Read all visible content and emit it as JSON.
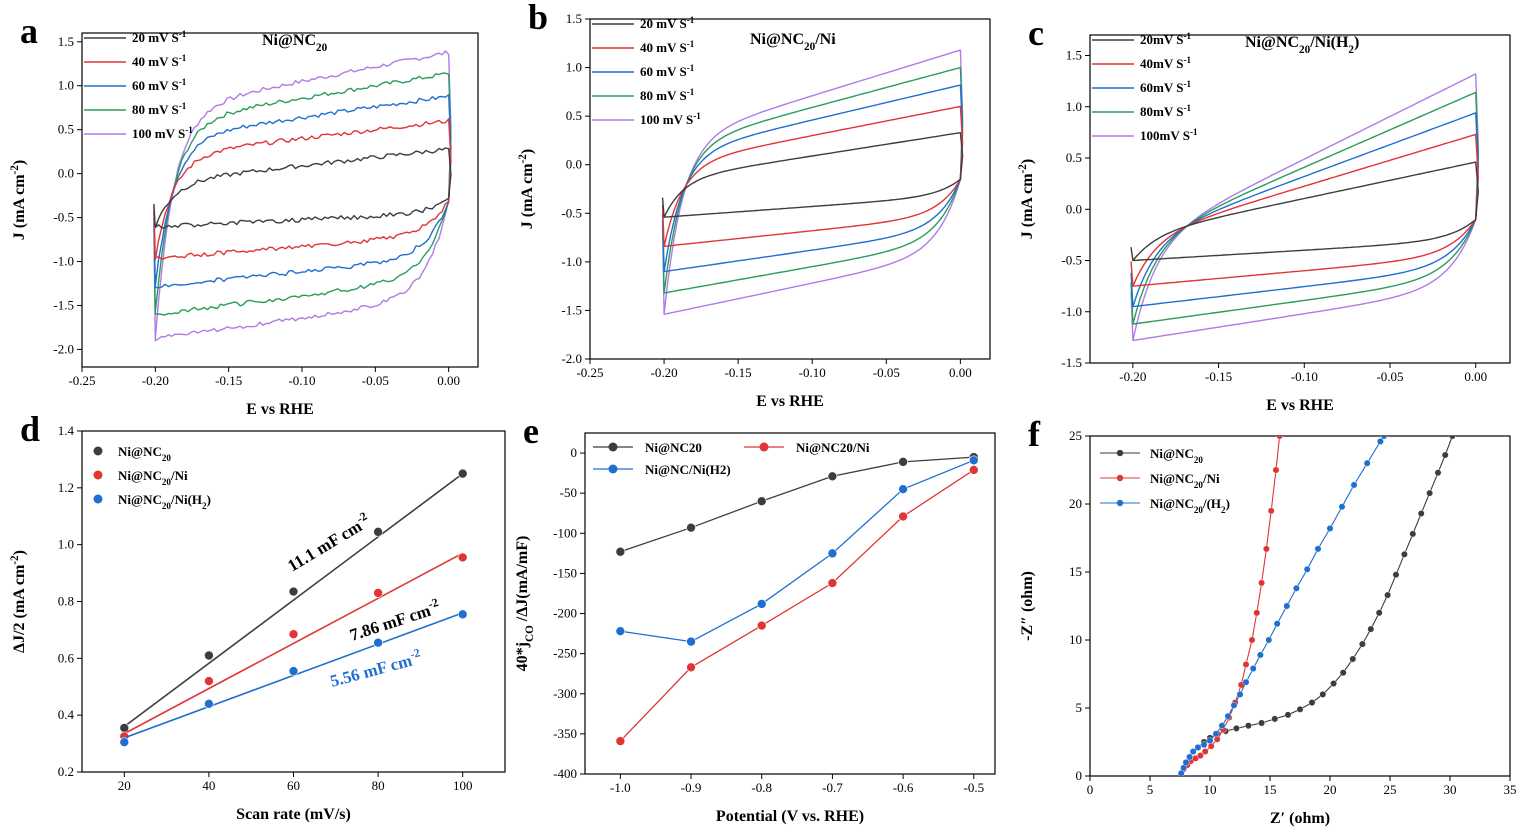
{
  "colors": {
    "black": "#3d3d3d",
    "red": "#e03535",
    "blue": "#1f6fd0",
    "green": "#2a9d5c",
    "purple": "#b07be8"
  },
  "chart_data": [
    {
      "id": "a",
      "type": "line",
      "panel_label": "a",
      "title": "Ni@NC20",
      "title_main": "Ni@NC",
      "title_sub": "20",
      "title_tail": "",
      "xlabel": "E vs RHE",
      "ylabel": "J (mA cm-2)",
      "ylabel_main": "J (mA cm",
      "ylabel_sup": "-2",
      "ylabel_tail": ")",
      "xlim": [
        -0.25,
        0.02
      ],
      "ylim": [
        -2.2,
        1.6
      ],
      "xticks": [
        -0.25,
        -0.2,
        -0.15,
        -0.1,
        -0.05,
        0.0
      ],
      "xtick_labels": [
        "-0.25",
        "-0.20",
        "-0.15",
        "-0.10",
        "-0.05",
        "0.00"
      ],
      "yticks": [
        -2.0,
        -1.5,
        -1.0,
        -0.5,
        0.0,
        0.5,
        1.0,
        1.5
      ],
      "ytick_labels": [
        "-2.0",
        "-1.5",
        "-1.0",
        "-0.5",
        "0.0",
        "0.5",
        "1.0",
        "1.5"
      ],
      "cv": {
        "x_min": -0.2,
        "x_max": 0.0,
        "cross_x": -0.018,
        "cross_y": -0.3,
        "noise": 0.025
      },
      "series": [
        {
          "name": "20 mV S-1",
          "label_main": "20 mV S",
          "label_sup": "-1",
          "color": "#3d3d3d",
          "upper_start": -0.1,
          "upper_end": 0.28,
          "lower_start": -0.6,
          "lower_end": -0.45
        },
        {
          "name": "40 mV S-1",
          "label_main": "40 mV S",
          "label_sup": "-1",
          "color": "#e03535",
          "upper_start": 0.2,
          "upper_end": 0.6,
          "lower_start": -0.96,
          "lower_end": -0.7
        },
        {
          "name": "60 mV S-1",
          "label_main": "60 mV S",
          "label_sup": "-1",
          "color": "#1f6fd0",
          "upper_start": 0.4,
          "upper_end": 0.88,
          "lower_start": -1.28,
          "lower_end": -0.95
        },
        {
          "name": "80 mV S-1",
          "label_main": "80 mV S",
          "label_sup": "-1",
          "color": "#2a9d5c",
          "upper_start": 0.58,
          "upper_end": 1.14,
          "lower_start": -1.6,
          "lower_end": -1.18
        },
        {
          "name": "100 mV S-1",
          "label_main": "100 mV S",
          "label_sup": "-1",
          "color": "#b07be8",
          "upper_start": 0.72,
          "upper_end": 1.38,
          "lower_start": -1.88,
          "lower_end": -1.4
        }
      ]
    },
    {
      "id": "b",
      "type": "line",
      "panel_label": "b",
      "title": "Ni@NC20/Ni",
      "title_main": "Ni@NC",
      "title_sub": "20",
      "title_tail": "/Ni",
      "xlabel": "E vs RHE",
      "ylabel": "J (mA cm-2)",
      "ylabel_main": "J (mA cm",
      "ylabel_sup": "-2",
      "ylabel_tail": ")",
      "xlim": [
        -0.25,
        0.02
      ],
      "ylim": [
        -2.0,
        1.5
      ],
      "xticks": [
        -0.25,
        -0.2,
        -0.15,
        -0.1,
        -0.05,
        0.0
      ],
      "xtick_labels": [
        "-0.25",
        "-0.20",
        "-0.15",
        "-0.10",
        "-0.05",
        "0.00"
      ],
      "yticks": [
        -2.0,
        -1.5,
        -1.0,
        -0.5,
        0.0,
        0.5,
        1.0,
        1.5
      ],
      "ytick_labels": [
        "-2.0",
        "-1.5",
        "-1.0",
        "-0.5",
        "0.0",
        "0.5",
        "1.0",
        "1.5"
      ],
      "cv": {
        "x_min": -0.2,
        "x_max": 0.0,
        "cross_x": -0.025,
        "cross_y": -0.15,
        "noise": 0.0
      },
      "series": [
        {
          "name": "20 mV S-1",
          "label_main": "20 mV S",
          "label_sup": "-1",
          "color": "#3d3d3d",
          "upper_start": -0.15,
          "upper_end": 0.33,
          "lower_start": -0.54,
          "lower_end": -0.32
        },
        {
          "name": "40 mV S-1",
          "label_main": "40 mV S",
          "label_sup": "-1",
          "color": "#e03535",
          "upper_start": 0.0,
          "upper_end": 0.6,
          "lower_start": -0.84,
          "lower_end": -0.52
        },
        {
          "name": "60 mV S-1",
          "label_main": "60 mV S",
          "label_sup": "-1",
          "color": "#1f6fd0",
          "upper_start": 0.1,
          "upper_end": 0.82,
          "lower_start": -1.1,
          "lower_end": -0.66
        },
        {
          "name": "80 mV S-1",
          "label_main": "80 mV S",
          "label_sup": "-1",
          "color": "#2a9d5c",
          "upper_start": 0.18,
          "upper_end": 1.0,
          "lower_start": -1.32,
          "lower_end": -0.78
        },
        {
          "name": "100 mV S-1",
          "label_main": "100 mV S",
          "label_sup": "-1",
          "color": "#b07be8",
          "upper_start": 0.24,
          "upper_end": 1.18,
          "lower_start": -1.54,
          "lower_end": -0.9
        }
      ]
    },
    {
      "id": "c",
      "type": "line",
      "panel_label": "c",
      "title": "Ni@NC20/Ni(H2)",
      "title_main": "Ni@NC",
      "title_sub": "20",
      "title_tail": "/Ni(H",
      "title_sub2": "2",
      "title_tail2": ")",
      "xlabel": "E vs RHE",
      "ylabel": "J (mA cm-2)",
      "ylabel_main": "J (mA cm",
      "ylabel_sup": "-2",
      "ylabel_tail": ")",
      "xlim": [
        -0.225,
        0.02
      ],
      "ylim": [
        -1.5,
        1.7
      ],
      "xticks": [
        -0.2,
        -0.15,
        -0.1,
        -0.05,
        0.0
      ],
      "xtick_labels": [
        "-0.20",
        "-0.15",
        "-0.10",
        "-0.05",
        "0.00"
      ],
      "yticks": [
        -1.5,
        -1.0,
        -0.5,
        0.0,
        0.5,
        1.0,
        1.5
      ],
      "ytick_labels": [
        "-1.5",
        "-1.0",
        "-0.5",
        "0.0",
        "0.5",
        "1.0",
        "1.5"
      ],
      "cv": {
        "x_min": -0.2,
        "x_max": 0.0,
        "cross_x": -0.03,
        "cross_y": -0.1,
        "noise": 0.0
      },
      "series": [
        {
          "name": "20mV S-1",
          "label_main": "20mV S",
          "label_sup": "-1",
          "color": "#3d3d3d",
          "upper_start": -0.25,
          "upper_end": 0.46,
          "lower_start": -0.5,
          "lower_end": -0.3
        },
        {
          "name": "40mV S-1",
          "label_main": "40mV S",
          "label_sup": "-1",
          "color": "#e03535",
          "upper_start": -0.28,
          "upper_end": 0.73,
          "lower_start": -0.75,
          "lower_end": -0.45
        },
        {
          "name": "60mV S-1",
          "label_main": "60mV S",
          "label_sup": "-1",
          "color": "#1f6fd0",
          "upper_start": -0.3,
          "upper_end": 0.94,
          "lower_start": -0.95,
          "lower_end": -0.56
        },
        {
          "name": "80mV S-1",
          "label_main": "80mV S",
          "label_sup": "-1",
          "color": "#2a9d5c",
          "upper_start": -0.32,
          "upper_end": 1.14,
          "lower_start": -1.12,
          "lower_end": -0.66
        },
        {
          "name": "100mV S-1",
          "label_main": "100mV S",
          "label_sup": "-1",
          "color": "#b07be8",
          "upper_start": -0.34,
          "upper_end": 1.32,
          "lower_start": -1.28,
          "lower_end": -0.76
        }
      ]
    },
    {
      "id": "d",
      "type": "scatter",
      "panel_label": "d",
      "xlabel": "Scan rate (mV/s)",
      "ylabel": "ΔJ/2 (mA cm-2)",
      "ylabel_main": "ΔJ/2 (mA cm",
      "ylabel_sup": "-2",
      "ylabel_tail": ")",
      "xlim": [
        10,
        110
      ],
      "ylim": [
        0.2,
        1.4
      ],
      "xticks": [
        20,
        40,
        60,
        80,
        100
      ],
      "xtick_labels": [
        "20",
        "40",
        "60",
        "80",
        "100"
      ],
      "yticks": [
        0.2,
        0.4,
        0.6,
        0.8,
        1.0,
        1.2,
        1.4
      ],
      "ytick_labels": [
        "0.2",
        "0.4",
        "0.6",
        "0.8",
        "1.0",
        "1.2",
        "1.4"
      ],
      "x": [
        20,
        40,
        60,
        80,
        100
      ],
      "series": [
        {
          "name": "Ni@NC20",
          "label_main": "Ni@NC",
          "label_sub": "20",
          "label_tail": "",
          "color": "#3d3d3d",
          "values": [
            0.355,
            0.61,
            0.835,
            1.045,
            1.25
          ],
          "fit": [
            0.36,
            1.25
          ],
          "annotation": "11.1 mF cm-2",
          "ann_main": "11.1 mF cm",
          "ann_sup": "-2",
          "ann_color": "#000000"
        },
        {
          "name": "Ni@NC20/Ni",
          "label_main": "Ni@NC",
          "label_sub": "20",
          "label_tail": "/Ni",
          "color": "#e03535",
          "values": [
            0.325,
            0.52,
            0.685,
            0.83,
            0.955
          ],
          "fit": [
            0.335,
            0.97
          ],
          "annotation": "7.86 mF cm-2",
          "ann_main": "7.86 mF cm",
          "ann_sup": "-2",
          "ann_color": "#000000"
        },
        {
          "name": "Ni@NC20/Ni(H2)",
          "label_main": "Ni@NC",
          "label_sub": "20",
          "label_tail": "/Ni(H",
          "label_sub2": "2",
          "label_tail2": ")",
          "color": "#1f6fd0",
          "values": [
            0.305,
            0.44,
            0.555,
            0.655,
            0.755
          ],
          "fit": [
            0.32,
            0.76
          ],
          "annotation": "5.56 mF cm-2",
          "ann_main": "5.56 mF cm",
          "ann_sup": "-2",
          "ann_color": "#1f6fd0"
        }
      ]
    },
    {
      "id": "e",
      "type": "line",
      "panel_label": "e",
      "xlabel": "Potential (V vs. RHE)",
      "ylabel": "40*jCO /ΔJ(mA/mF)",
      "ylabel_main": "40*j",
      "ylabel_sub": "CO",
      "ylabel_tail": " /ΔJ(mA/mF)",
      "xlim": [
        -1.05,
        -0.47
      ],
      "ylim": [
        -400,
        25
      ],
      "xticks": [
        -1.0,
        -0.9,
        -0.8,
        -0.7,
        -0.6,
        -0.5
      ],
      "xtick_labels": [
        "-1.0",
        "-0.9",
        "-0.8",
        "-0.7",
        "-0.6",
        "-0.5"
      ],
      "yticks": [
        -400,
        -350,
        -300,
        -250,
        -200,
        -150,
        -100,
        -50,
        0
      ],
      "ytick_labels": [
        "-400",
        "-350",
        "-300",
        "-250",
        "-200",
        "-150",
        "-100",
        "-50",
        "0"
      ],
      "x": [
        -1.0,
        -0.9,
        -0.8,
        -0.7,
        -0.6,
        -0.5
      ],
      "series": [
        {
          "name": "Ni@NC20",
          "label_main": "Ni@NC20",
          "color": "#3d3d3d",
          "values": [
            -123,
            -93,
            -60,
            -29,
            -11,
            -5
          ]
        },
        {
          "name": "Ni@NC20/Ni",
          "label_main": "Ni@NC20/Ni",
          "color": "#e03535",
          "values": [
            -359,
            -267,
            -215,
            -162,
            -79,
            -21
          ]
        },
        {
          "name": "Ni@NC/Ni(H2)",
          "label_main": "Ni@NC/Ni(H2)",
          "color": "#1f6fd0",
          "values": [
            -222,
            -235,
            -188,
            -125,
            -45,
            -9
          ]
        }
      ]
    },
    {
      "id": "f",
      "type": "scatter",
      "panel_label": "f",
      "xlabel": "Z′ (ohm)",
      "ylabel": "-Z″ (ohm)",
      "xlim": [
        0,
        35
      ],
      "ylim": [
        0,
        25
      ],
      "xticks": [
        0,
        5,
        10,
        15,
        20,
        25,
        30,
        35
      ],
      "xtick_labels": [
        "0",
        "5",
        "10",
        "15",
        "20",
        "25",
        "30",
        "35"
      ],
      "yticks": [
        0,
        5,
        10,
        15,
        20,
        25
      ],
      "ytick_labels": [
        "0",
        "5",
        "10",
        "15",
        "20",
        "25"
      ],
      "series": [
        {
          "name": "Ni@NC20",
          "label_main": "Ni@NC",
          "label_sub": "20",
          "label_tail": "",
          "color": "#3d3d3d",
          "points": [
            [
              7.6,
              0.2
            ],
            [
              7.8,
              0.6
            ],
            [
              8.0,
              1.0
            ],
            [
              8.3,
              1.4
            ],
            [
              8.6,
              1.8
            ],
            [
              9.0,
              2.1
            ],
            [
              9.5,
              2.5
            ],
            [
              10.0,
              2.8
            ],
            [
              10.6,
              3.1
            ],
            [
              11.3,
              3.3
            ],
            [
              12.2,
              3.5
            ],
            [
              13.2,
              3.7
            ],
            [
              14.3,
              3.9
            ],
            [
              15.4,
              4.2
            ],
            [
              16.5,
              4.5
            ],
            [
              17.5,
              4.9
            ],
            [
              18.5,
              5.4
            ],
            [
              19.4,
              6.0
            ],
            [
              20.3,
              6.8
            ],
            [
              21.1,
              7.6
            ],
            [
              21.9,
              8.6
            ],
            [
              22.7,
              9.7
            ],
            [
              23.4,
              10.8
            ],
            [
              24.1,
              12.0
            ],
            [
              24.8,
              13.3
            ],
            [
              25.5,
              14.8
            ],
            [
              26.2,
              16.3
            ],
            [
              26.9,
              17.8
            ],
            [
              27.6,
              19.3
            ],
            [
              28.3,
              20.8
            ],
            [
              29.0,
              22.3
            ],
            [
              29.6,
              23.6
            ],
            [
              30.2,
              25.0
            ]
          ]
        },
        {
          "name": "Ni@NC20/Ni",
          "label_main": "Ni@NC",
          "label_sub": "20",
          "label_tail": "/Ni",
          "color": "#e03535",
          "points": [
            [
              7.6,
              0.2
            ],
            [
              7.8,
              0.5
            ],
            [
              8.1,
              0.8
            ],
            [
              8.4,
              1.1
            ],
            [
              8.8,
              1.3
            ],
            [
              9.2,
              1.5
            ],
            [
              9.6,
              1.8
            ],
            [
              10.1,
              2.2
            ],
            [
              10.6,
              2.7
            ],
            [
              11.1,
              3.4
            ],
            [
              11.6,
              4.3
            ],
            [
              12.1,
              5.4
            ],
            [
              12.6,
              6.7
            ],
            [
              13.0,
              8.2
            ],
            [
              13.5,
              10.0
            ],
            [
              13.9,
              12.0
            ],
            [
              14.3,
              14.2
            ],
            [
              14.7,
              16.7
            ],
            [
              15.1,
              19.5
            ],
            [
              15.5,
              22.5
            ],
            [
              15.8,
              25.0
            ]
          ]
        },
        {
          "name": "Ni@NC20/(H2)",
          "label_main": "Ni@NC",
          "label_sub": "20",
          "label_tail": "/(H",
          "label_sub2": "2",
          "label_tail2": ")",
          "color": "#1f6fd0",
          "points": [
            [
              7.6,
              0.2
            ],
            [
              7.8,
              0.6
            ],
            [
              8.0,
              1.0
            ],
            [
              8.3,
              1.4
            ],
            [
              8.6,
              1.8
            ],
            [
              9.0,
              2.1
            ],
            [
              9.5,
              2.3
            ],
            [
              10.0,
              2.6
            ],
            [
              10.5,
              3.1
            ],
            [
              11.0,
              3.7
            ],
            [
              11.5,
              4.4
            ],
            [
              12.0,
              5.2
            ],
            [
              12.5,
              6.0
            ],
            [
              13.0,
              6.9
            ],
            [
              13.6,
              7.9
            ],
            [
              14.2,
              8.9
            ],
            [
              14.9,
              10.0
            ],
            [
              15.6,
              11.2
            ],
            [
              16.4,
              12.5
            ],
            [
              17.2,
              13.8
            ],
            [
              18.1,
              15.2
            ],
            [
              19.0,
              16.7
            ],
            [
              20.0,
              18.2
            ],
            [
              21.0,
              19.8
            ],
            [
              22.0,
              21.4
            ],
            [
              23.1,
              23.0
            ],
            [
              24.2,
              24.6
            ],
            [
              24.5,
              25.0
            ]
          ]
        }
      ]
    }
  ]
}
